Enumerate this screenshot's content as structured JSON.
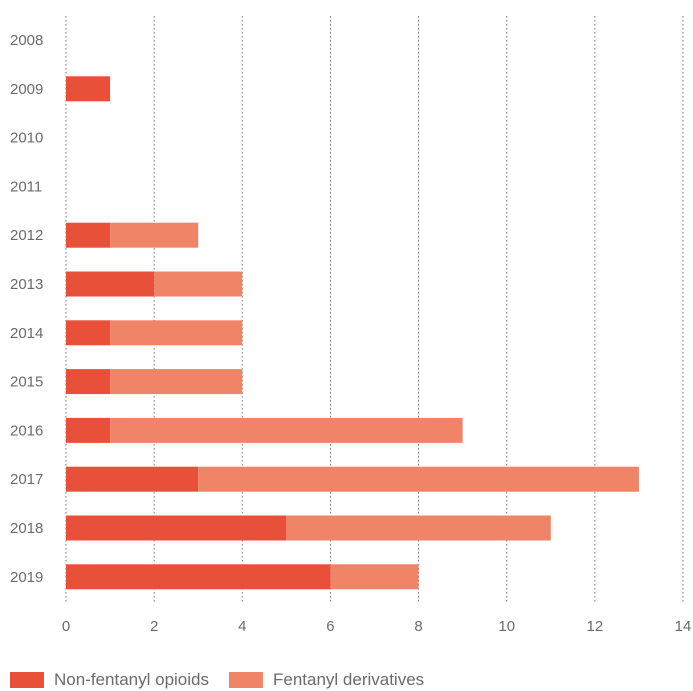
{
  "chart_data": {
    "type": "bar",
    "orientation": "horizontal",
    "stacked": true,
    "categories": [
      "2008",
      "2009",
      "2010",
      "2011",
      "2012",
      "2013",
      "2014",
      "2015",
      "2016",
      "2017",
      "2018",
      "2019"
    ],
    "series": [
      {
        "name": "Non-fentanyl opioids",
        "values": [
          0,
          1,
          0,
          0,
          1,
          2,
          1,
          1,
          1,
          3,
          5,
          6
        ],
        "color": "#e8503a"
      },
      {
        "name": "Fentanyl derivatives",
        "values": [
          0,
          0,
          0,
          0,
          2,
          2,
          3,
          3,
          8,
          10,
          6,
          2
        ],
        "color": "#ef8466"
      }
    ],
    "x_ticks": [
      "0",
      "2",
      "4",
      "6",
      "8",
      "10",
      "12",
      "14"
    ],
    "xlim": [
      0,
      14
    ],
    "grid": "vertical dotted",
    "legend_position": "bottom-left"
  }
}
